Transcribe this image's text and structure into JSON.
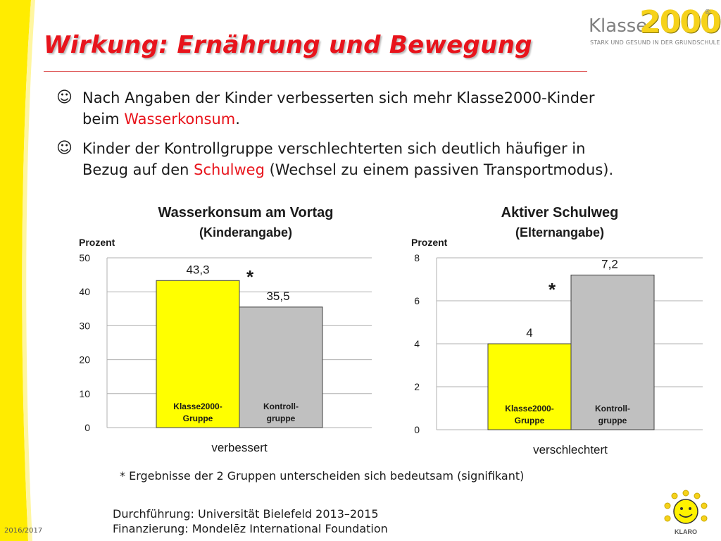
{
  "title": "Wirkung: Ernährung und Bewegung",
  "logo": {
    "word": "Klasse",
    "num": "2000",
    "reg": "®",
    "tagline": "STARK UND GESUND IN DER GRUNDSCHULE"
  },
  "bullets": [
    {
      "icon": "smiley-icon",
      "pre": "Nach Angaben der Kinder verbesserten sich mehr Klasse2000-Kinder",
      "line2_pre": "beim ",
      "highlight": "Wasserkonsum",
      "post": "."
    },
    {
      "icon": "smiley-icon",
      "pre": "Kinder der Kontrollgruppe verschlechterten sich deutlich häufiger in",
      "line2_pre": "Bezug auf den ",
      "highlight": "Schulweg",
      "post": " (Wechsel zu einem passiven Transportmodus)."
    }
  ],
  "footnote": "* Ergebnisse der 2 Gruppen unterscheiden sich bedeutsam (signifikant)",
  "credits": [
    "Durchführung: Universität Bielefeld 2013–2015",
    "Finanzierung: Mondelēz International Foundation"
  ],
  "year": "2016/2017",
  "mascot": "KLARO",
  "colors": {
    "title": "#e8141c",
    "bar_klasse": "#ffff00",
    "bar_kontroll": "#c0c0c0"
  },
  "chart_data": [
    {
      "type": "bar",
      "title": "Wasserkonsum am Vortag",
      "subtitle": "(Kinderangabe)",
      "ylabel": "Prozent",
      "xlabel": "verbessert",
      "ylim": [
        0,
        50
      ],
      "yticks": [
        0,
        10,
        20,
        30,
        40,
        50
      ],
      "grid": true,
      "series": [
        {
          "name": "Klasse2000-Gruppe",
          "label_lines": [
            "Klasse2000-",
            "Gruppe"
          ],
          "value": 43.3,
          "value_label": "43,3",
          "color": "#ffff00"
        },
        {
          "name": "Kontroll-gruppe",
          "label_lines": [
            "Kontroll-",
            "gruppe"
          ],
          "value": 35.5,
          "value_label": "35,5",
          "color": "#c0c0c0"
        }
      ],
      "significance_marker": "*"
    },
    {
      "type": "bar",
      "title": "Aktiver Schulweg",
      "subtitle": "(Elternangabe)",
      "ylabel": "Prozent",
      "xlabel": "verschlechtert",
      "ylim": [
        0,
        8
      ],
      "yticks": [
        0,
        2,
        4,
        6,
        8
      ],
      "grid": true,
      "series": [
        {
          "name": "Klasse2000-Gruppe",
          "label_lines": [
            "Klasse2000-",
            "Gruppe"
          ],
          "value": 4,
          "value_label": "4",
          "color": "#ffff00"
        },
        {
          "name": "Kontroll-gruppe",
          "label_lines": [
            "Kontroll-",
            "gruppe"
          ],
          "value": 7.2,
          "value_label": "7,2",
          "color": "#c0c0c0"
        }
      ],
      "significance_marker": "*"
    }
  ]
}
